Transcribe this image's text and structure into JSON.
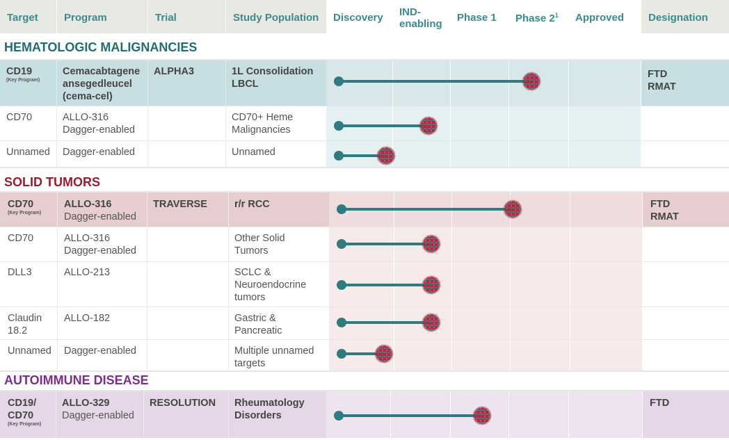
{
  "header": {
    "target": "Target",
    "program": "Program",
    "trial": "Trial",
    "study_population": "Study Population",
    "discovery": "Discovery",
    "ind_line1": "IND-",
    "ind_line2": "enabling",
    "phase1": "Phase 1",
    "phase2": "Phase 2",
    "phase2_sup": "1",
    "approved": "Approved",
    "designation": "Designation"
  },
  "stages": [
    "Discovery",
    "IND-enabling",
    "Phase 1",
    "Phase 2",
    "Approved"
  ],
  "sections": {
    "heme": {
      "title": "HEMATOLOGIC MALIGNANCIES",
      "color": "#1e6f73",
      "rows": [
        {
          "target": "CD19",
          "key": "(Key Program)",
          "program_bold": "Cemacabtagene ansegedleucel (cema-cel)",
          "trial": "ALPHA3",
          "population": "1L Consolidation LBCL",
          "designation1": "FTD",
          "designation2": "RMAT",
          "progress": 3.38
        },
        {
          "target": "CD70",
          "program1": "ALLO-316",
          "program2": "Dagger-enabled",
          "population": "CD70+ Heme Malignancies",
          "progress": 1.63
        },
        {
          "target": "Unnamed",
          "program2": "Dagger-enabled",
          "population": "Unnamed",
          "progress": 0.9
        }
      ]
    },
    "solid": {
      "title": "SOLID TUMORS",
      "color": "#9b1c2e",
      "rows": [
        {
          "target": "CD70",
          "key": "(Key Program)",
          "program_bold": "ALLO-316",
          "program2": "Dagger-enabled",
          "trial": "TRAVERSE",
          "population": "r/r RCC",
          "designation1": "FTD",
          "designation2": "RMAT",
          "progress": 3.05
        },
        {
          "target": "CD70",
          "program1": "ALLO-316",
          "program2": "Dagger-enabled",
          "population": "Other Solid Tumors",
          "progress": 1.65
        },
        {
          "target": "DLL3",
          "program1": "ALLO-213",
          "population": "SCLC & Neuroendocrine tumors",
          "progress": 1.65
        },
        {
          "target": "Claudin 18.2",
          "program1": "ALLO-182",
          "population": "Gastric & Pancreatic",
          "progress": 1.65
        },
        {
          "target": "Unnamed",
          "program2": "Dagger-enabled",
          "population": "Multiple unnamed targets",
          "progress": 0.85
        }
      ]
    },
    "auto": {
      "title": "AUTOIMMUNE DISEASE",
      "color": "#7b2e8c",
      "rows": [
        {
          "target": "CD19/ CD70",
          "key": "(Key Program)",
          "program_bold": "ALLO-329",
          "program2": "Dagger-enabled",
          "trial": "RESOLUTION",
          "population": "Rheumatology Disorders",
          "designation1": "FTD",
          "progress": 2.55
        }
      ]
    }
  }
}
